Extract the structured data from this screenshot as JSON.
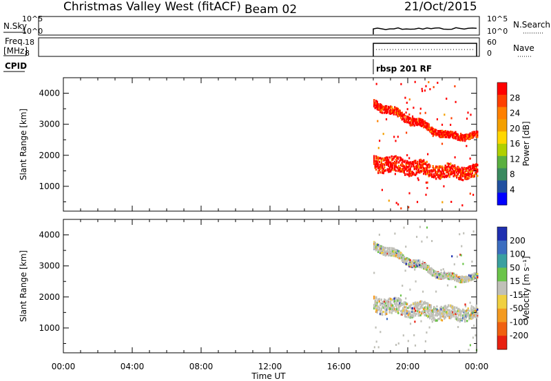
{
  "header": {
    "title": "Christmas Valley West (fitACF)",
    "beam": "Beam 02",
    "date": "21/Oct/2015"
  },
  "params_panels": {
    "nsky_label": "N.Sky",
    "nsky_ticks": [
      "10^5",
      "10^0"
    ],
    "nsearch_label": "N.Search",
    "freq_label_line1": "Freq.",
    "freq_label_line2": "[MHz]",
    "freq_ticks": [
      "18",
      "8"
    ],
    "freq_right_ticks": [
      "60",
      "0"
    ],
    "nave_label": "Nave",
    "cpid_label": "CPID",
    "cpid_value": "rbsp 201 RF"
  },
  "chart_data": [
    {
      "type": "heatmap",
      "name": "power",
      "ylabel": "Slant Range [km]",
      "yticks": [
        1000,
        2000,
        3000,
        4000
      ],
      "ylim": [
        200,
        4500
      ],
      "xlim_hours": [
        0,
        24
      ],
      "colorbar": {
        "label": "Power [dB]",
        "ticks": [
          "28",
          "24",
          "20",
          "16",
          "12",
          "8",
          "4"
        ],
        "colors": [
          "#ff0000",
          "#ff4000",
          "#ff8000",
          "#f4a000",
          "#ffd700",
          "#b0d000",
          "#5ab040",
          "#3a8a60",
          "#2050a0",
          "#0000ff"
        ]
      },
      "data_start_hour": 18.0,
      "bands": [
        {
          "range_start_km": 3700,
          "range_end_km": 2650,
          "dominant": "red"
        },
        {
          "range_start_km": 1800,
          "range_end_km": 1500,
          "dominant": "red"
        }
      ]
    },
    {
      "type": "heatmap",
      "name": "velocity",
      "ylabel": "Slant Range [km]",
      "yticks": [
        1000,
        2000,
        3000,
        4000
      ],
      "ylim": [
        200,
        4500
      ],
      "xlim_hours": [
        0,
        24
      ],
      "colorbar": {
        "label": "Velocity [m s⁻¹]",
        "ticks": [
          "200",
          "100",
          "50",
          "15",
          "-15",
          "-50",
          "-100",
          "-200"
        ],
        "colors": [
          "#1e2fb0",
          "#3c6ec0",
          "#3aa0a0",
          "#6bc44a",
          "#c0c0b8",
          "#f0d040",
          "#f49a20",
          "#f06010",
          "#e82010"
        ]
      },
      "data_start_hour": 18.0,
      "bands": [
        {
          "range_start_km": 3700,
          "range_end_km": 2650,
          "dominant": "grey"
        },
        {
          "range_start_km": 1800,
          "range_end_km": 1500,
          "dominant": "grey"
        }
      ]
    }
  ],
  "xaxis": {
    "label": "Time UT",
    "ticks": [
      "00:00",
      "04:00",
      "08:00",
      "12:00",
      "16:00",
      "20:00",
      "00:00"
    ],
    "tick_hours": [
      0,
      4,
      8,
      12,
      16,
      20,
      24
    ]
  }
}
